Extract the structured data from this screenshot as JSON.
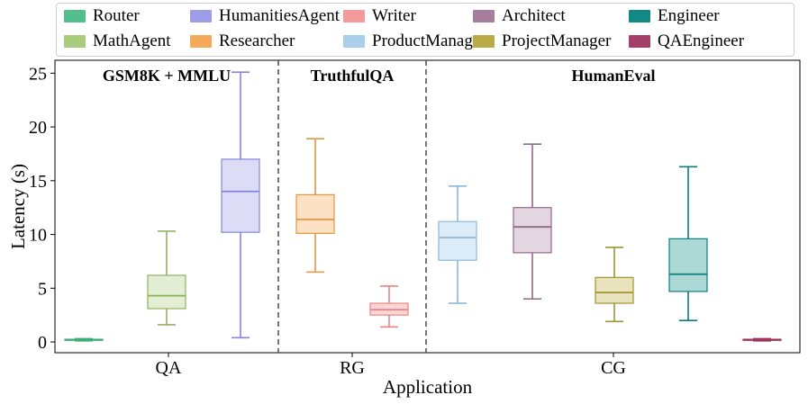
{
  "chart_data": {
    "type": "box",
    "xlabel": "Application",
    "ylabel": "Latency (s)",
    "ylim": [
      -1,
      26.2
    ],
    "yticks": [
      0,
      5,
      10,
      15,
      20,
      25
    ],
    "categories": [
      "QA",
      "RG",
      "CG"
    ],
    "sections": [
      "GSM8K + MMLU",
      "TruthfulQA",
      "HumanEval"
    ],
    "legend": [
      {
        "name": "Router",
        "color": "#52c08c"
      },
      {
        "name": "MathAgent",
        "color": "#a9cd7d"
      },
      {
        "name": "HumanitiesAgent",
        "color": "#9d9de8"
      },
      {
        "name": "Researcher",
        "color": "#f6a959"
      },
      {
        "name": "Writer",
        "color": "#f59a9a"
      },
      {
        "name": "ProductManager",
        "color": "#a9cfeb"
      },
      {
        "name": "Architect",
        "color": "#a67f9c"
      },
      {
        "name": "ProjectManager",
        "color": "#b9ab45"
      },
      {
        "name": "Engineer",
        "color": "#118a86"
      },
      {
        "name": "QAEngineer",
        "color": "#a44068"
      }
    ],
    "series": [
      {
        "name": "Router",
        "category": "QA",
        "color": "#3cae78",
        "fill": "#cbeedc",
        "min": 0.1,
        "q1": 0.15,
        "median": 0.2,
        "q3": 0.25,
        "max": 0.3
      },
      {
        "name": "MathAgent",
        "category": "QA",
        "color": "#8fb35e",
        "fill": "#e4eed4",
        "min": 1.6,
        "q1": 3.1,
        "median": 4.3,
        "q3": 6.2,
        "max": 10.3
      },
      {
        "name": "HumanitiesAgent",
        "category": "QA",
        "color": "#8585df",
        "fill": "#dcdcf7",
        "min": 0.4,
        "q1": 10.2,
        "median": 14.0,
        "q3": 17.0,
        "max": 25.1
      },
      {
        "name": "Researcher",
        "category": "RG",
        "color": "#e69540",
        "fill": "#fde1c4",
        "min": 6.5,
        "q1": 10.1,
        "median": 11.4,
        "q3": 13.7,
        "max": 18.9
      },
      {
        "name": "Writer",
        "category": "RG",
        "color": "#ea8585",
        "fill": "#fbd6d6",
        "min": 1.4,
        "q1": 2.5,
        "median": 3.0,
        "q3": 3.6,
        "max": 5.2
      },
      {
        "name": "ProductManager",
        "category": "CG",
        "color": "#8bbad9",
        "fill": "#dcecf8",
        "min": 3.6,
        "q1": 7.6,
        "median": 9.7,
        "q3": 11.2,
        "max": 14.5
      },
      {
        "name": "Architect",
        "category": "CG",
        "color": "#8f6a86",
        "fill": "#e4d6e0",
        "min": 4.0,
        "q1": 8.3,
        "median": 10.7,
        "q3": 12.5,
        "max": 18.4
      },
      {
        "name": "ProjectManager",
        "category": "CG",
        "color": "#a19433",
        "fill": "#e8e3bd",
        "min": 1.9,
        "q1": 3.6,
        "median": 4.6,
        "q3": 6.0,
        "max": 8.8
      },
      {
        "name": "Engineer",
        "category": "CG",
        "color": "#0b7f7b",
        "fill": "#acd9d6",
        "min": 2.0,
        "q1": 4.7,
        "median": 6.3,
        "q3": 9.6,
        "max": 16.3
      },
      {
        "name": "QAEngineer",
        "category": "CG",
        "color": "#9c3560",
        "fill": "#eccad8",
        "min": 0.1,
        "q1": 0.15,
        "median": 0.2,
        "q3": 0.25,
        "max": 0.3
      }
    ]
  }
}
